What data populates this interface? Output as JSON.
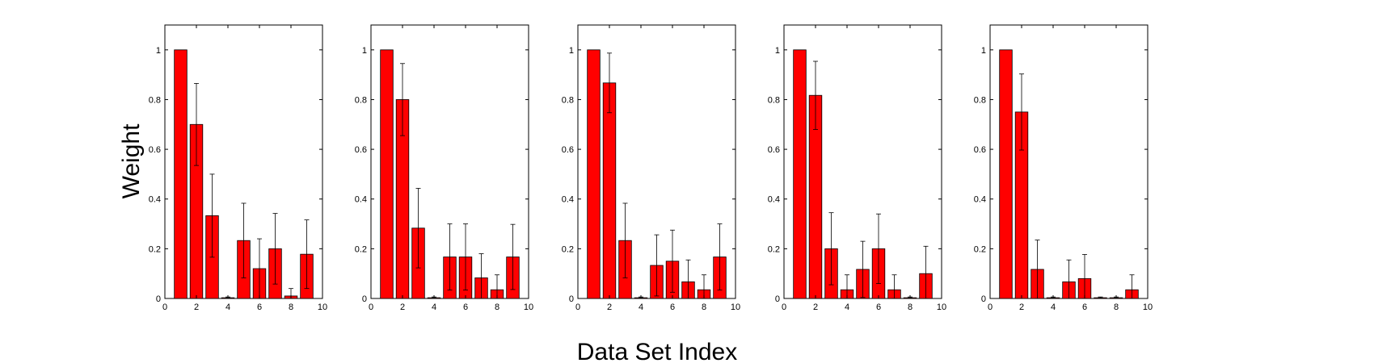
{
  "figure": {
    "ylabel": "Weight",
    "xlabel": "Data Set Index"
  },
  "chart_data": [
    {
      "type": "bar",
      "x": [
        1,
        2,
        3,
        4,
        5,
        6,
        7,
        8,
        9
      ],
      "values": [
        1.0,
        0.7,
        0.333,
        0.003,
        0.233,
        0.12,
        0.2,
        0.01,
        0.178
      ],
      "errors": [
        0.0,
        0.165,
        0.167,
        0.003,
        0.15,
        0.12,
        0.142,
        0.03,
        0.138
      ],
      "xlim": [
        0,
        10
      ],
      "ylim": [
        0,
        1.1
      ],
      "xticks": [
        0,
        2,
        4,
        6,
        8,
        10
      ],
      "yticks": [
        0,
        0.2,
        0.4,
        0.6,
        0.8,
        1
      ],
      "bar_color": "#ff0000",
      "grid": false
    },
    {
      "type": "bar",
      "x": [
        1,
        2,
        3,
        4,
        5,
        6,
        7,
        8,
        9
      ],
      "values": [
        1.0,
        0.8,
        0.283,
        0.003,
        0.167,
        0.167,
        0.083,
        0.035,
        0.167
      ],
      "errors": [
        0.0,
        0.145,
        0.16,
        0.003,
        0.133,
        0.133,
        0.097,
        0.06,
        0.131
      ],
      "xlim": [
        0,
        10
      ],
      "ylim": [
        0,
        1.1
      ],
      "xticks": [
        0,
        2,
        4,
        6,
        8,
        10
      ],
      "yticks": [
        0,
        0.2,
        0.4,
        0.6,
        0.8,
        1
      ],
      "bar_color": "#ff0000",
      "grid": false
    },
    {
      "type": "bar",
      "x": [
        1,
        2,
        3,
        4,
        5,
        6,
        7,
        8,
        9
      ],
      "values": [
        1.0,
        0.867,
        0.233,
        0.003,
        0.133,
        0.15,
        0.067,
        0.035,
        0.167
      ],
      "errors": [
        0.0,
        0.12,
        0.15,
        0.003,
        0.123,
        0.125,
        0.088,
        0.06,
        0.133
      ],
      "xlim": [
        0,
        10
      ],
      "ylim": [
        0,
        1.1
      ],
      "xticks": [
        0,
        2,
        4,
        6,
        8,
        10
      ],
      "yticks": [
        0,
        0.2,
        0.4,
        0.6,
        0.8,
        1
      ],
      "bar_color": "#ff0000",
      "grid": false
    },
    {
      "type": "bar",
      "x": [
        1,
        2,
        3,
        4,
        5,
        6,
        7,
        8,
        9
      ],
      "values": [
        1.0,
        0.817,
        0.2,
        0.035,
        0.117,
        0.2,
        0.035,
        0.003,
        0.1
      ],
      "errors": [
        0.0,
        0.137,
        0.145,
        0.06,
        0.113,
        0.14,
        0.06,
        0.003,
        0.11
      ],
      "xlim": [
        0,
        10
      ],
      "ylim": [
        0,
        1.1
      ],
      "xticks": [
        0,
        2,
        4,
        6,
        8,
        10
      ],
      "yticks": [
        0,
        0.2,
        0.4,
        0.6,
        0.8,
        1
      ],
      "bar_color": "#ff0000",
      "grid": false
    },
    {
      "type": "bar",
      "x": [
        1,
        2,
        3,
        4,
        5,
        6,
        7,
        8,
        9
      ],
      "values": [
        1.0,
        0.75,
        0.117,
        0.003,
        0.067,
        0.08,
        0.003,
        0.003,
        0.035
      ],
      "errors": [
        0.0,
        0.153,
        0.118,
        0.003,
        0.088,
        0.097,
        0.003,
        0.003,
        0.06
      ],
      "xlim": [
        0,
        10
      ],
      "ylim": [
        0,
        1.1
      ],
      "xticks": [
        0,
        2,
        4,
        6,
        8,
        10
      ],
      "yticks": [
        0,
        0.2,
        0.4,
        0.6,
        0.8,
        1
      ],
      "bar_color": "#ff0000",
      "grid": false
    }
  ]
}
